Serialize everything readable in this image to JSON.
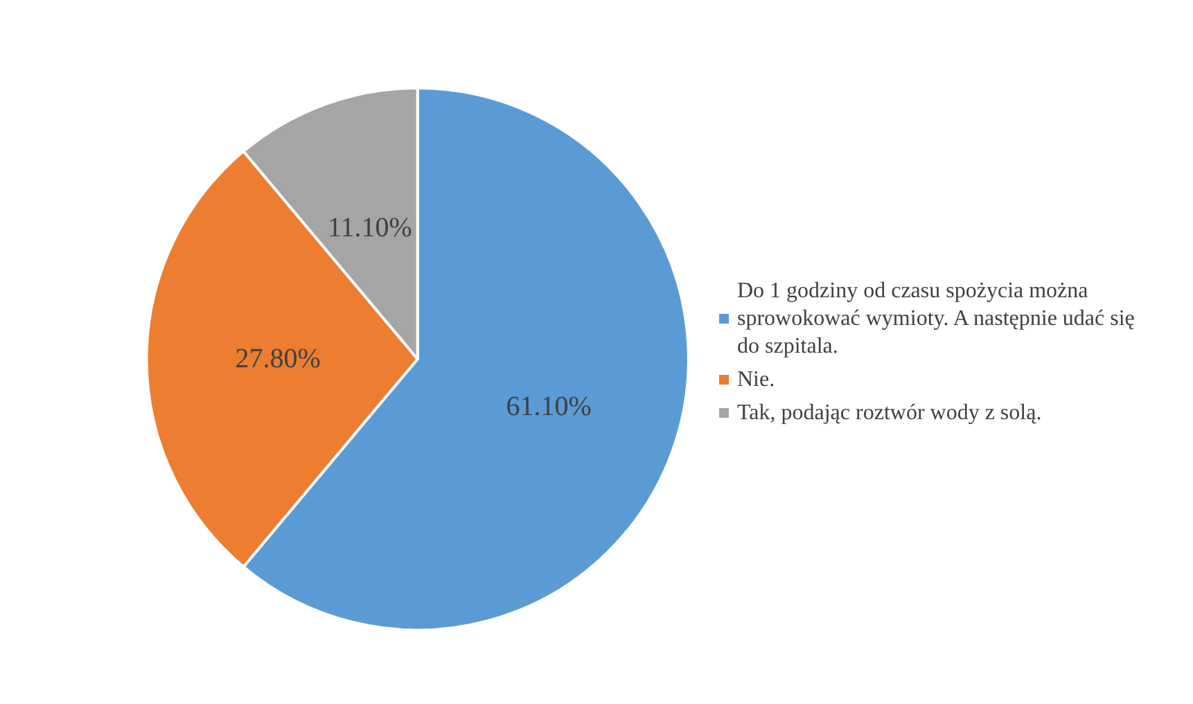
{
  "chart_data": {
    "type": "pie",
    "categories": [
      "Do 1 godziny od czasu spożycia można sprowokować wymioty. A następnie udać się do szpitala.",
      "Nie.",
      "Tak, podając roztwór wody z solą."
    ],
    "values": [
      61.1,
      27.8,
      11.1
    ],
    "colors": [
      "#5b9bd5",
      "#ed7d31",
      "#a5a5a5"
    ],
    "value_labels": [
      "61.10%",
      "27.80%",
      "11.10%"
    ],
    "legend": "right"
  }
}
